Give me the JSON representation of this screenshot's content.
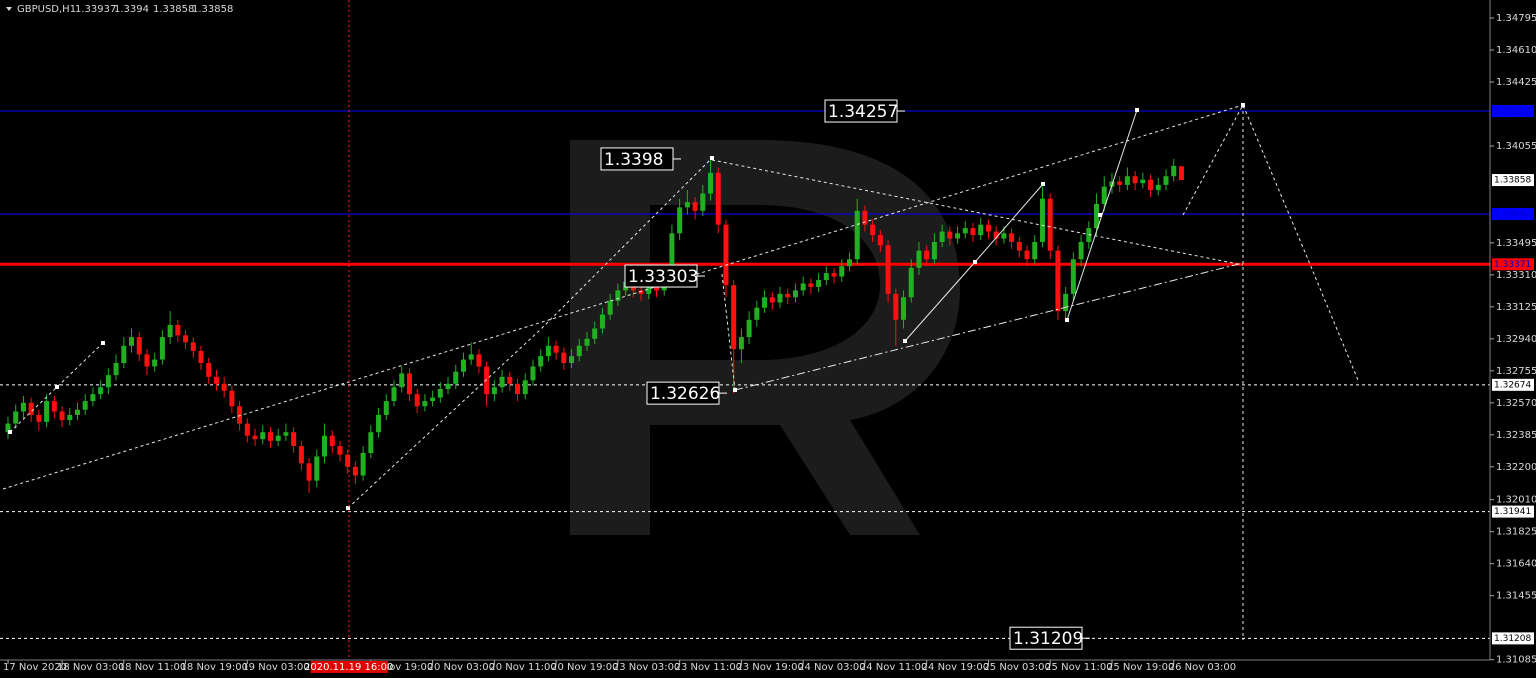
{
  "chart_data": {
    "type": "candlestick",
    "symbol": "GBPUSD,H1",
    "up_color": "#22b022",
    "down_color": "#ff1010",
    "ylim": [
      1.31083,
      1.34899
    ],
    "yticks": [
      1.34795,
      {
        "value": 1.3461,
        "label": "1.34610"
      },
      1.34425,
      1.34055,
      1.33495,
      {
        "value": 1.3331,
        "label": "1.33310"
      },
      1.33125,
      {
        "value": 1.3294,
        "label": "1.32940"
      },
      1.32755,
      {
        "value": 1.3257,
        "label": "1.32570"
      },
      1.32385,
      {
        "value": 1.322,
        "label": "1.32200"
      },
      {
        "value": 1.3201,
        "label": "1.32010"
      },
      1.31825,
      {
        "value": 1.3164,
        "label": "1.31640"
      },
      1.31455,
      1.31085
    ],
    "xticks": [
      {
        "value": 0,
        "label": "17 Nov 2020"
      },
      {
        "value": 7,
        "label": "18 Nov 03:00"
      },
      {
        "value": 15,
        "label": "18 Nov 11:00"
      },
      {
        "value": 23,
        "label": "18 Nov 19:00"
      },
      {
        "value": 31,
        "label": "19 Nov 03:00"
      },
      {
        "value": 47,
        "label": "19 Nov 19:00"
      },
      {
        "value": 55,
        "label": "20 Nov 03:00"
      },
      {
        "value": 63,
        "label": "20 Nov 11:00"
      },
      {
        "value": 71,
        "label": "20 Nov 19:00"
      },
      {
        "value": 79,
        "label": "23 Nov 03:00"
      },
      {
        "value": 87,
        "label": "23 Nov 11:00"
      },
      {
        "value": 95,
        "label": "23 Nov 19:00"
      },
      {
        "value": 103,
        "label": "24 Nov 03:00"
      },
      {
        "value": 111,
        "label": "24 Nov 11:00"
      },
      {
        "value": 119,
        "label": "24 Nov 19:00"
      },
      {
        "value": 127,
        "label": "25 Nov 03:00"
      },
      {
        "value": 135,
        "label": "25 Nov 11:00"
      },
      {
        "value": 143,
        "label": "25 Nov 19:00"
      },
      {
        "value": 151,
        "label": "26 Nov 03:00"
      }
    ],
    "crosshair": {
      "value": 44,
      "label": "2020.11.19 16:00"
    },
    "levels": [
      {
        "value": 1.34257,
        "color": "#0000ff",
        "style": "solid"
      },
      {
        "value": 1.33662,
        "color": "#0000ff",
        "style": "solid"
      },
      {
        "value": 1.33371,
        "color": "#ff0000",
        "style": "thick"
      },
      {
        "value": 1.32674,
        "color": "#ffffff",
        "style": "dashed"
      },
      {
        "value": 1.31941,
        "color": "#ffffff",
        "style": "dashed"
      },
      {
        "value": 1.31208,
        "color": "#ffffff",
        "style": "dashed"
      }
    ],
    "annotations": [
      1.34257,
      1.3398,
      1.33303,
      1.32626,
      1.31209
    ],
    "ohlc": [
      [
        1.324,
        1.3249,
        1.3236,
        1.3245
      ],
      [
        1.3245,
        1.3256,
        1.3242,
        1.3252
      ],
      [
        1.3252,
        1.3261,
        1.3248,
        1.3257
      ],
      [
        1.3257,
        1.326,
        1.3246,
        1.325
      ],
      [
        1.325,
        1.3253,
        1.3241,
        1.3246
      ],
      [
        1.3246,
        1.3262,
        1.3243,
        1.3258
      ],
      [
        1.3258,
        1.3261,
        1.3248,
        1.3252
      ],
      [
        1.3252,
        1.3255,
        1.3243,
        1.3247
      ],
      [
        1.3247,
        1.3254,
        1.3244,
        1.325
      ],
      [
        1.325,
        1.3257,
        1.3247,
        1.3253
      ],
      [
        1.3253,
        1.3262,
        1.325,
        1.3258
      ],
      [
        1.3258,
        1.3266,
        1.3255,
        1.3262
      ],
      [
        1.3262,
        1.327,
        1.3259,
        1.3266
      ],
      [
        1.3266,
        1.3277,
        1.3262,
        1.3273
      ],
      [
        1.3273,
        1.3285,
        1.327,
        1.328
      ],
      [
        1.328,
        1.3295,
        1.3277,
        1.329
      ],
      [
        1.329,
        1.33,
        1.3286,
        1.3295
      ],
      [
        1.3295,
        1.3298,
        1.3281,
        1.3285
      ],
      [
        1.3285,
        1.3288,
        1.3273,
        1.3278
      ],
      [
        1.3278,
        1.3286,
        1.3275,
        1.3282
      ],
      [
        1.3282,
        1.3299,
        1.3279,
        1.3295
      ],
      [
        1.3295,
        1.331,
        1.3291,
        1.3302
      ],
      [
        1.3302,
        1.3305,
        1.3292,
        1.3296
      ],
      [
        1.3296,
        1.3299,
        1.3288,
        1.3292
      ],
      [
        1.3292,
        1.3295,
        1.3283,
        1.3287
      ],
      [
        1.3287,
        1.329,
        1.3276,
        1.328
      ],
      [
        1.328,
        1.3283,
        1.3268,
        1.3272
      ],
      [
        1.3272,
        1.3276,
        1.3264,
        1.3268
      ],
      [
        1.3268,
        1.3272,
        1.326,
        1.3264
      ],
      [
        1.3264,
        1.3267,
        1.3251,
        1.3255
      ],
      [
        1.3255,
        1.3258,
        1.3241,
        1.3245
      ],
      [
        1.3245,
        1.3248,
        1.3234,
        1.3238
      ],
      [
        1.3238,
        1.3242,
        1.3232,
        1.3236
      ],
      [
        1.3236,
        1.3244,
        1.3233,
        1.324
      ],
      [
        1.324,
        1.3243,
        1.3231,
        1.3235
      ],
      [
        1.3235,
        1.3242,
        1.3232,
        1.3238
      ],
      [
        1.3238,
        1.3245,
        1.3235,
        1.324
      ],
      [
        1.324,
        1.3243,
        1.3228,
        1.3232
      ],
      [
        1.3232,
        1.3235,
        1.3218,
        1.3222
      ],
      [
        1.3222,
        1.3225,
        1.3205,
        1.3212
      ],
      [
        1.3212,
        1.323,
        1.3208,
        1.3226
      ],
      [
        1.3226,
        1.3245,
        1.3222,
        1.3238
      ],
      [
        1.3238,
        1.3241,
        1.3228,
        1.3232
      ],
      [
        1.3232,
        1.3235,
        1.3223,
        1.3227
      ],
      [
        1.3227,
        1.323,
        1.3216,
        1.322
      ],
      [
        1.322,
        1.3223,
        1.321,
        1.3215
      ],
      [
        1.3215,
        1.3232,
        1.3212,
        1.3228
      ],
      [
        1.3228,
        1.3244,
        1.3225,
        1.324
      ],
      [
        1.324,
        1.3254,
        1.3237,
        1.325
      ],
      [
        1.325,
        1.3262,
        1.3247,
        1.3258
      ],
      [
        1.3258,
        1.327,
        1.3255,
        1.3266
      ],
      [
        1.3266,
        1.3278,
        1.3263,
        1.3274
      ],
      [
        1.3274,
        1.3277,
        1.3258,
        1.3262
      ],
      [
        1.3262,
        1.3265,
        1.3251,
        1.3255
      ],
      [
        1.3255,
        1.3262,
        1.3252,
        1.3258
      ],
      [
        1.3258,
        1.3264,
        1.3255,
        1.326
      ],
      [
        1.326,
        1.3269,
        1.3257,
        1.3265
      ],
      [
        1.3265,
        1.3272,
        1.3262,
        1.3268
      ],
      [
        1.3268,
        1.3279,
        1.3265,
        1.3275
      ],
      [
        1.3275,
        1.3286,
        1.3272,
        1.3282
      ],
      [
        1.3282,
        1.3292,
        1.3279,
        1.3285
      ],
      [
        1.3285,
        1.3288,
        1.3274,
        1.3278
      ],
      [
        1.3278,
        1.3281,
        1.3255,
        1.3262
      ],
      [
        1.3262,
        1.327,
        1.3258,
        1.3266
      ],
      [
        1.3266,
        1.3276,
        1.3263,
        1.3272
      ],
      [
        1.3272,
        1.3275,
        1.3264,
        1.3268
      ],
      [
        1.3268,
        1.3271,
        1.3258,
        1.3262
      ],
      [
        1.3262,
        1.3274,
        1.3259,
        1.327
      ],
      [
        1.327,
        1.3282,
        1.3267,
        1.3278
      ],
      [
        1.3278,
        1.3288,
        1.3275,
        1.3284
      ],
      [
        1.3284,
        1.3295,
        1.3281,
        1.329
      ],
      [
        1.329,
        1.3293,
        1.3282,
        1.3286
      ],
      [
        1.3286,
        1.3289,
        1.3276,
        1.328
      ],
      [
        1.328,
        1.3288,
        1.3277,
        1.3284
      ],
      [
        1.3284,
        1.3294,
        1.3281,
        1.329
      ],
      [
        1.329,
        1.3298,
        1.3287,
        1.3294
      ],
      [
        1.3294,
        1.3304,
        1.3291,
        1.33
      ],
      [
        1.33,
        1.3312,
        1.3297,
        1.3308
      ],
      [
        1.3308,
        1.332,
        1.3305,
        1.3316
      ],
      [
        1.3316,
        1.3326,
        1.3313,
        1.3322
      ],
      [
        1.3322,
        1.3331,
        1.3319,
        1.3327
      ],
      [
        1.3327,
        1.333,
        1.3318,
        1.3322
      ],
      [
        1.3322,
        1.3325,
        1.3316,
        1.332
      ],
      [
        1.332,
        1.3329,
        1.3317,
        1.3325
      ],
      [
        1.3325,
        1.3328,
        1.3318,
        1.3322
      ],
      [
        1.3322,
        1.3334,
        1.3319,
        1.333
      ],
      [
        1.333,
        1.336,
        1.3327,
        1.3355
      ],
      [
        1.3355,
        1.3375,
        1.3351,
        1.337
      ],
      [
        1.337,
        1.338,
        1.3366,
        1.3373
      ],
      [
        1.3373,
        1.3376,
        1.3363,
        1.3368
      ],
      [
        1.3368,
        1.3383,
        1.3365,
        1.3378
      ],
      [
        1.3378,
        1.3398,
        1.3374,
        1.339
      ],
      [
        1.339,
        1.3393,
        1.3355,
        1.336
      ],
      [
        1.336,
        1.3363,
        1.3318,
        1.3325
      ],
      [
        1.3325,
        1.3328,
        1.32626,
        1.3288
      ],
      [
        1.3288,
        1.33,
        1.328,
        1.3295
      ],
      [
        1.3295,
        1.331,
        1.3291,
        1.3305
      ],
      [
        1.3305,
        1.3316,
        1.3301,
        1.3312
      ],
      [
        1.3312,
        1.3322,
        1.3309,
        1.3318
      ],
      [
        1.3318,
        1.3321,
        1.3311,
        1.3315
      ],
      [
        1.3315,
        1.3324,
        1.3312,
        1.332
      ],
      [
        1.332,
        1.3323,
        1.3314,
        1.3318
      ],
      [
        1.3318,
        1.3326,
        1.3315,
        1.3322
      ],
      [
        1.3322,
        1.333,
        1.3319,
        1.3326
      ],
      [
        1.3326,
        1.3329,
        1.332,
        1.3324
      ],
      [
        1.3324,
        1.3332,
        1.3321,
        1.3328
      ],
      [
        1.3328,
        1.3336,
        1.3325,
        1.3332
      ],
      [
        1.3332,
        1.3335,
        1.3326,
        1.333
      ],
      [
        1.333,
        1.334,
        1.3327,
        1.3336
      ],
      [
        1.3336,
        1.3344,
        1.3333,
        1.334
      ],
      [
        1.334,
        1.3375,
        1.3337,
        1.3368
      ],
      [
        1.3368,
        1.3371,
        1.3356,
        1.336
      ],
      [
        1.336,
        1.3363,
        1.335,
        1.3354
      ],
      [
        1.3354,
        1.3357,
        1.3344,
        1.3348
      ],
      [
        1.3348,
        1.3351,
        1.3315,
        1.332
      ],
      [
        1.332,
        1.3323,
        1.329,
        1.3305
      ],
      [
        1.3305,
        1.3322,
        1.33,
        1.3318
      ],
      [
        1.3318,
        1.334,
        1.3315,
        1.3335
      ],
      [
        1.3335,
        1.335,
        1.3331,
        1.3345
      ],
      [
        1.3345,
        1.3348,
        1.3336,
        1.334
      ],
      [
        1.334,
        1.3355,
        1.3337,
        1.335
      ],
      [
        1.335,
        1.336,
        1.3347,
        1.3356
      ],
      [
        1.3356,
        1.3359,
        1.3348,
        1.3352
      ],
      [
        1.3352,
        1.3359,
        1.3349,
        1.3355
      ],
      [
        1.3355,
        1.3362,
        1.3352,
        1.3358
      ],
      [
        1.3358,
        1.3361,
        1.335,
        1.3354
      ],
      [
        1.3354,
        1.3364,
        1.3351,
        1.336
      ],
      [
        1.336,
        1.3363,
        1.3352,
        1.3356
      ],
      [
        1.3356,
        1.3359,
        1.3348,
        1.3352
      ],
      [
        1.3352,
        1.3359,
        1.3349,
        1.3355
      ],
      [
        1.3355,
        1.3358,
        1.3346,
        1.335
      ],
      [
        1.335,
        1.3353,
        1.3341,
        1.3345
      ],
      [
        1.3345,
        1.3348,
        1.3336,
        1.334
      ],
      [
        1.334,
        1.3354,
        1.3337,
        1.335
      ],
      [
        1.335,
        1.3382,
        1.3347,
        1.3375
      ],
      [
        1.3375,
        1.3378,
        1.334,
        1.3345
      ],
      [
        1.3345,
        1.3348,
        1.3305,
        1.331
      ],
      [
        1.331,
        1.3324,
        1.3306,
        1.332
      ],
      [
        1.332,
        1.3344,
        1.3316,
        1.334
      ],
      [
        1.334,
        1.3354,
        1.3336,
        1.335
      ],
      [
        1.335,
        1.3362,
        1.3346,
        1.3358
      ],
      [
        1.3358,
        1.3378,
        1.3354,
        1.3372
      ],
      [
        1.3372,
        1.3388,
        1.3368,
        1.3382
      ],
      [
        1.3382,
        1.339,
        1.3378,
        1.3385
      ],
      [
        1.3385,
        1.3388,
        1.3379,
        1.3383
      ],
      [
        1.3383,
        1.3393,
        1.338,
        1.3388
      ],
      [
        1.3388,
        1.3391,
        1.338,
        1.3384
      ],
      [
        1.3384,
        1.339,
        1.3381,
        1.3386
      ],
      [
        1.3386,
        1.3389,
        1.3376,
        1.338
      ],
      [
        1.338,
        1.3387,
        1.3377,
        1.3383
      ],
      [
        1.3383,
        1.3392,
        1.338,
        1.3388
      ],
      [
        1.3388,
        1.3398,
        1.3385,
        1.3394
      ],
      [
        1.33937,
        1.3394,
        1.33858,
        1.33858
      ]
    ]
  }
}
